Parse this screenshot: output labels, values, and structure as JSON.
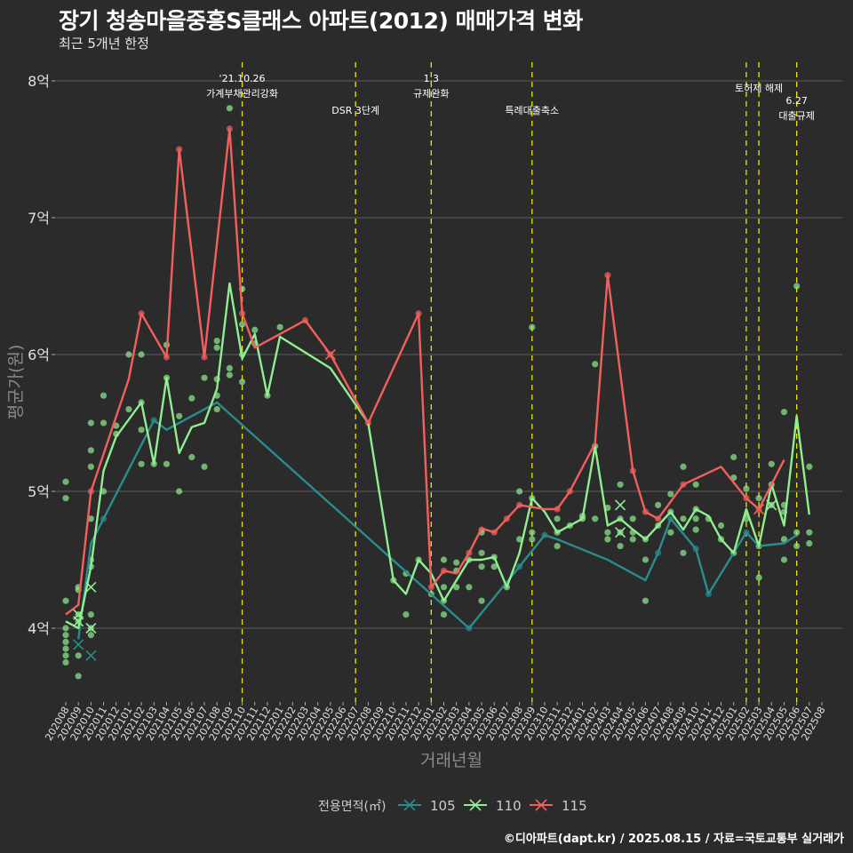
{
  "header": {
    "title": "장기 청송마을중흥S클래스 아파트(2012) 매매가격 변화",
    "subtitle": "최근 5개년 한정"
  },
  "footer": {
    "caption": "©디아파트(dapt.kr) / 2025.08.15 / 자료=국토교통부 실거래가"
  },
  "colors": {
    "background": "#2b2b2b",
    "grid": "#5e5e5e",
    "s105": "#2a8c8c",
    "s110": "#90ee90",
    "s115": "#f25f5c",
    "event": "#e8e800"
  },
  "chart_data": {
    "type": "line",
    "title": "장기 청송마을중흥S클래스 아파트(2012) 매매가격 변화",
    "subtitle": "최근 5개년 한정",
    "xlabel": "거래년월",
    "ylabel": "평균가(원)",
    "legend_title": "전용면적(㎡)",
    "legend_position": "bottom",
    "grid": true,
    "categories": [
      "202008",
      "202009",
      "202010",
      "202011",
      "202012",
      "202101",
      "202102",
      "202103",
      "202104",
      "202105",
      "202106",
      "202107",
      "202108",
      "202109",
      "202110",
      "202111",
      "202112",
      "202201",
      "202202",
      "202203",
      "202204",
      "202205",
      "202206",
      "202207",
      "202208",
      "202209",
      "202210",
      "202211",
      "202212",
      "202301",
      "202302",
      "202303",
      "202304",
      "202305",
      "202306",
      "202307",
      "202308",
      "202309",
      "202310",
      "202311",
      "202312",
      "202401",
      "202402",
      "202403",
      "202404",
      "202405",
      "202406",
      "202407",
      "202408",
      "202409",
      "202410",
      "202411",
      "202412",
      "202501",
      "202502",
      "202503",
      "202504",
      "202505",
      "202506",
      "202507",
      "202508"
    ],
    "y_ticks": [
      {
        "value": 4.0,
        "label": "4억"
      },
      {
        "value": 5.0,
        "label": "5억"
      },
      {
        "value": 6.0,
        "label": "6억"
      },
      {
        "value": 7.0,
        "label": "7억"
      },
      {
        "value": 8.0,
        "label": "8억"
      }
    ],
    "ylim": [
      3.5,
      8.05
    ],
    "series": [
      {
        "name": "105",
        "color": "#2a8c8c",
        "points": [
          [
            "202009",
            3.92
          ],
          [
            "202010",
            4.62
          ],
          [
            "202011",
            4.8
          ],
          [
            "202103",
            5.52
          ],
          [
            "202104",
            5.45
          ],
          [
            "202108",
            5.65
          ],
          [
            "202304",
            4.0
          ],
          [
            "202308",
            4.45
          ],
          [
            "202310",
            4.68
          ],
          [
            "202311",
            4.65
          ],
          [
            "202403",
            4.5
          ],
          [
            "202406",
            4.35
          ],
          [
            "202407",
            4.55
          ],
          [
            "202408",
            4.8
          ],
          [
            "202410",
            4.58
          ],
          [
            "202411",
            4.25
          ],
          [
            "202501",
            4.55
          ],
          [
            "202502",
            4.7
          ],
          [
            "202503",
            4.6
          ],
          [
            "202505",
            4.62
          ],
          [
            "202506",
            4.68
          ]
        ]
      },
      {
        "name": "110",
        "color": "#90ee90",
        "points": [
          [
            "202008",
            4.05
          ],
          [
            "202009",
            4.0
          ],
          [
            "202010",
            4.45
          ],
          [
            "202011",
            5.15
          ],
          [
            "202012",
            5.4
          ],
          [
            "202102",
            5.65
          ],
          [
            "202103",
            5.2
          ],
          [
            "202104",
            5.83
          ],
          [
            "202105",
            5.28
          ],
          [
            "202106",
            5.47
          ],
          [
            "202107",
            5.5
          ],
          [
            "202108",
            5.75
          ],
          [
            "202109",
            6.52
          ],
          [
            "202110",
            5.97
          ],
          [
            "202111",
            6.15
          ],
          [
            "202112",
            5.7
          ],
          [
            "202201",
            6.13
          ],
          [
            "202205",
            5.9
          ],
          [
            "202208",
            5.5
          ],
          [
            "202210",
            4.35
          ],
          [
            "202211",
            4.25
          ],
          [
            "202212",
            4.5
          ],
          [
            "202301",
            4.4
          ],
          [
            "202302",
            4.2
          ],
          [
            "202303",
            4.35
          ],
          [
            "202304",
            4.5
          ],
          [
            "202305",
            4.5
          ],
          [
            "202306",
            4.52
          ],
          [
            "202307",
            4.3
          ],
          [
            "202308",
            4.55
          ],
          [
            "202309",
            4.95
          ],
          [
            "202310",
            4.85
          ],
          [
            "202311",
            4.7
          ],
          [
            "202312",
            4.75
          ],
          [
            "202401",
            4.8
          ],
          [
            "202402",
            5.33
          ],
          [
            "202403",
            4.75
          ],
          [
            "202404",
            4.8
          ],
          [
            "202405",
            4.72
          ],
          [
            "202406",
            4.65
          ],
          [
            "202407",
            4.75
          ],
          [
            "202408",
            4.85
          ],
          [
            "202409",
            4.72
          ],
          [
            "202410",
            4.87
          ],
          [
            "202411",
            4.82
          ],
          [
            "202412",
            4.65
          ],
          [
            "202501",
            4.55
          ],
          [
            "202502",
            4.87
          ],
          [
            "202503",
            4.6
          ],
          [
            "202504",
            5.05
          ],
          [
            "202505",
            4.75
          ],
          [
            "202506",
            5.55
          ],
          [
            "202507",
            4.83
          ]
        ]
      },
      {
        "name": "115",
        "color": "#f25f5c",
        "points": [
          [
            "202008",
            4.1
          ],
          [
            "202009",
            4.17
          ],
          [
            "202010",
            5.0
          ],
          [
            "202101",
            5.82
          ],
          [
            "202102",
            6.3
          ],
          [
            "202104",
            5.98
          ],
          [
            "202105",
            7.5
          ],
          [
            "202107",
            5.98
          ],
          [
            "202109",
            7.65
          ],
          [
            "202110",
            6.3
          ],
          [
            "202111",
            6.05
          ],
          [
            "202203",
            6.25
          ],
          [
            "202205",
            6.0
          ],
          [
            "202208",
            5.5
          ],
          [
            "202212",
            6.3
          ],
          [
            "202301",
            4.3
          ],
          [
            "202302",
            4.42
          ],
          [
            "202303",
            4.4
          ],
          [
            "202304",
            4.55
          ],
          [
            "202305",
            4.73
          ],
          [
            "202306",
            4.7
          ],
          [
            "202307",
            4.8
          ],
          [
            "202308",
            4.9
          ],
          [
            "202310",
            4.87
          ],
          [
            "202311",
            4.87
          ],
          [
            "202312",
            5.0
          ],
          [
            "202402",
            5.35
          ],
          [
            "202403",
            6.58
          ],
          [
            "202405",
            5.15
          ],
          [
            "202406",
            4.85
          ],
          [
            "202407",
            4.8
          ],
          [
            "202409",
            5.05
          ],
          [
            "202412",
            5.18
          ],
          [
            "202502",
            4.95
          ],
          [
            "202503",
            4.87
          ],
          [
            "202505",
            5.23
          ]
        ]
      }
    ],
    "scatter": [
      [
        "202008",
        4.95
      ],
      [
        "202008",
        5.07
      ],
      [
        "202008",
        4.0
      ],
      [
        "202008",
        3.95
      ],
      [
        "202008",
        3.9
      ],
      [
        "202008",
        3.85
      ],
      [
        "202008",
        3.8
      ],
      [
        "202008",
        3.75
      ],
      [
        "202008",
        4.2
      ],
      [
        "202009",
        3.65
      ],
      [
        "202009",
        4.3
      ],
      [
        "202009",
        4.28
      ],
      [
        "202009",
        4.1
      ],
      [
        "202009",
        4.05
      ],
      [
        "202009",
        3.8
      ],
      [
        "202010",
        5.5
      ],
      [
        "202010",
        5.3
      ],
      [
        "202010",
        5.18
      ],
      [
        "202010",
        5.0
      ],
      [
        "202010",
        4.8
      ],
      [
        "202010",
        4.5
      ],
      [
        "202010",
        4.45
      ],
      [
        "202010",
        4.1
      ],
      [
        "202010",
        4.0
      ],
      [
        "202010",
        3.95
      ],
      [
        "202011",
        5.7
      ],
      [
        "202011",
        5.5
      ],
      [
        "202011",
        5.0
      ],
      [
        "202011",
        4.8
      ],
      [
        "202012",
        5.48
      ],
      [
        "202012",
        5.42
      ],
      [
        "202101",
        6.0
      ],
      [
        "202101",
        5.6
      ],
      [
        "202102",
        6.3
      ],
      [
        "202102",
        6.0
      ],
      [
        "202102",
        5.65
      ],
      [
        "202102",
        5.45
      ],
      [
        "202102",
        5.2
      ],
      [
        "202103",
        5.52
      ],
      [
        "202103",
        5.2
      ],
      [
        "202104",
        6.07
      ],
      [
        "202104",
        5.98
      ],
      [
        "202104",
        5.83
      ],
      [
        "202104",
        5.2
      ],
      [
        "202105",
        7.5
      ],
      [
        "202105",
        5.55
      ],
      [
        "202105",
        5.0
      ],
      [
        "202106",
        5.68
      ],
      [
        "202106",
        5.25
      ],
      [
        "202107",
        5.98
      ],
      [
        "202107",
        5.83
      ],
      [
        "202107",
        5.18
      ],
      [
        "202108",
        6.1
      ],
      [
        "202108",
        6.05
      ],
      [
        "202108",
        5.82
      ],
      [
        "202108",
        5.7
      ],
      [
        "202108",
        5.6
      ],
      [
        "202109",
        7.8
      ],
      [
        "202109",
        7.65
      ],
      [
        "202109",
        5.9
      ],
      [
        "202109",
        5.85
      ],
      [
        "202110",
        6.48
      ],
      [
        "202110",
        6.3
      ],
      [
        "202110",
        6.22
      ],
      [
        "202110",
        6.0
      ],
      [
        "202110",
        5.8
      ],
      [
        "202111",
        6.18
      ],
      [
        "202111",
        6.08
      ],
      [
        "202112",
        5.7
      ],
      [
        "202201",
        6.2
      ],
      [
        "202203",
        6.25
      ],
      [
        "202205",
        6.0
      ],
      [
        "202208",
        5.5
      ],
      [
        "202210",
        4.35
      ],
      [
        "202211",
        4.4
      ],
      [
        "202211",
        4.1
      ],
      [
        "202212",
        6.3
      ],
      [
        "202212",
        4.5
      ],
      [
        "202301",
        4.3
      ],
      [
        "202301",
        4.25
      ],
      [
        "202302",
        4.5
      ],
      [
        "202302",
        4.42
      ],
      [
        "202302",
        4.3
      ],
      [
        "202302",
        4.2
      ],
      [
        "202302",
        4.1
      ],
      [
        "202303",
        4.48
      ],
      [
        "202303",
        4.42
      ],
      [
        "202303",
        4.3
      ],
      [
        "202304",
        4.55
      ],
      [
        "202304",
        4.5
      ],
      [
        "202304",
        4.3
      ],
      [
        "202304",
        4.0
      ],
      [
        "202305",
        4.72
      ],
      [
        "202305",
        4.7
      ],
      [
        "202305",
        4.55
      ],
      [
        "202305",
        4.45
      ],
      [
        "202305",
        4.2
      ],
      [
        "202306",
        4.7
      ],
      [
        "202306",
        4.52
      ],
      [
        "202306",
        4.45
      ],
      [
        "202307",
        4.8
      ],
      [
        "202307",
        4.3
      ],
      [
        "202308",
        5.0
      ],
      [
        "202308",
        4.9
      ],
      [
        "202308",
        4.65
      ],
      [
        "202308",
        4.45
      ],
      [
        "202309",
        6.2
      ],
      [
        "202309",
        4.95
      ],
      [
        "202309",
        4.7
      ],
      [
        "202309",
        4.65
      ],
      [
        "202310",
        4.68
      ],
      [
        "202311",
        4.87
      ],
      [
        "202311",
        4.8
      ],
      [
        "202311",
        4.7
      ],
      [
        "202311",
        4.6
      ],
      [
        "202312",
        5.0
      ],
      [
        "202312",
        4.75
      ],
      [
        "202401",
        4.82
      ],
      [
        "202401",
        4.8
      ],
      [
        "202402",
        5.93
      ],
      [
        "202402",
        5.33
      ],
      [
        "202402",
        4.8
      ],
      [
        "202403",
        6.58
      ],
      [
        "202403",
        4.88
      ],
      [
        "202403",
        4.7
      ],
      [
        "202403",
        4.65
      ],
      [
        "202404",
        5.05
      ],
      [
        "202404",
        4.8
      ],
      [
        "202404",
        4.7
      ],
      [
        "202404",
        4.6
      ],
      [
        "202405",
        5.15
      ],
      [
        "202405",
        4.8
      ],
      [
        "202405",
        4.7
      ],
      [
        "202405",
        4.65
      ],
      [
        "202406",
        4.85
      ],
      [
        "202406",
        4.65
      ],
      [
        "202406",
        4.5
      ],
      [
        "202406",
        4.2
      ],
      [
        "202407",
        4.9
      ],
      [
        "202407",
        4.8
      ],
      [
        "202407",
        4.75
      ],
      [
        "202407",
        4.55
      ],
      [
        "202408",
        4.98
      ],
      [
        "202408",
        4.85
      ],
      [
        "202408",
        4.8
      ],
      [
        "202408",
        4.7
      ],
      [
        "202409",
        5.18
      ],
      [
        "202409",
        5.05
      ],
      [
        "202409",
        4.8
      ],
      [
        "202409",
        4.55
      ],
      [
        "202410",
        5.05
      ],
      [
        "202410",
        4.87
      ],
      [
        "202410",
        4.8
      ],
      [
        "202410",
        4.72
      ],
      [
        "202410",
        4.58
      ],
      [
        "202411",
        4.8
      ],
      [
        "202411",
        4.25
      ],
      [
        "202412",
        4.75
      ],
      [
        "202412",
        4.65
      ],
      [
        "202501",
        5.25
      ],
      [
        "202501",
        5.1
      ],
      [
        "202501",
        4.55
      ],
      [
        "202502",
        5.02
      ],
      [
        "202502",
        4.95
      ],
      [
        "202502",
        4.8
      ],
      [
        "202502",
        4.7
      ],
      [
        "202503",
        4.95
      ],
      [
        "202503",
        4.87
      ],
      [
        "202503",
        4.6
      ],
      [
        "202503",
        4.37
      ],
      [
        "202504",
        5.2
      ],
      [
        "202504",
        5.05
      ],
      [
        "202504",
        4.9
      ],
      [
        "202505",
        5.58
      ],
      [
        "202505",
        4.9
      ],
      [
        "202505",
        4.85
      ],
      [
        "202505",
        4.65
      ],
      [
        "202505",
        4.5
      ],
      [
        "202506",
        6.5
      ],
      [
        "202506",
        4.7
      ],
      [
        "202506",
        4.6
      ],
      [
        "202507",
        5.18
      ],
      [
        "202507",
        4.7
      ],
      [
        "202507",
        4.62
      ]
    ],
    "cross_markers": [
      {
        "series": "105",
        "x": "202009",
        "y": 3.88
      },
      {
        "series": "105",
        "x": "202010",
        "y": 3.8
      },
      {
        "series": "110",
        "x": "202009",
        "y": 4.1
      },
      {
        "series": "110",
        "x": "202009",
        "y": 4.05
      },
      {
        "series": "110",
        "x": "202010",
        "y": 4.3
      },
      {
        "series": "110",
        "x": "202010",
        "y": 4.0
      },
      {
        "series": "110",
        "x": "202404",
        "y": 4.9
      },
      {
        "series": "110",
        "x": "202404",
        "y": 4.7
      },
      {
        "series": "110",
        "x": "202504",
        "y": 4.9
      },
      {
        "series": "115",
        "x": "202205",
        "y": 6.0
      },
      {
        "series": "115",
        "x": "202503",
        "y": 4.87
      }
    ],
    "events": [
      {
        "x": "202110",
        "lines": [
          "'21.10.26",
          "가계부채관리강화"
        ],
        "level": 0
      },
      {
        "x": "202207",
        "lines": [
          "DSR 3단계"
        ],
        "level": 1
      },
      {
        "x": "202301",
        "lines": [
          "1.3",
          "규제완화"
        ],
        "level": 0
      },
      {
        "x": "202309",
        "lines": [
          "특례대출축소"
        ],
        "level": 1
      },
      {
        "x": "202502",
        "lines": [],
        "level": 0
      },
      {
        "x": "202503",
        "lines": [
          "토허제 해제"
        ],
        "level": 0
      },
      {
        "x": "202506",
        "lines": [
          "6.27",
          "대출규제"
        ],
        "level": 1
      }
    ]
  }
}
